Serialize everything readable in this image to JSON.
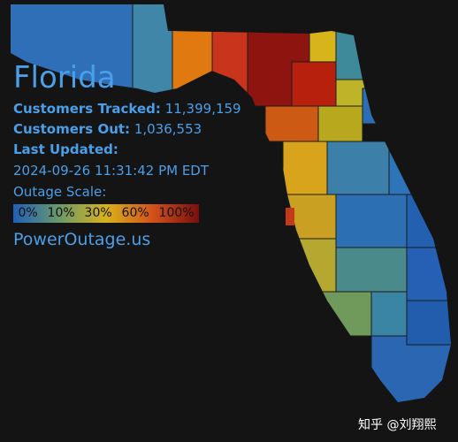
{
  "title": "Florida",
  "stats": [
    {
      "label": "Customers Tracked:",
      "value": "11,399,159"
    },
    {
      "label": "Customers Out:",
      "value": "1,036,553"
    }
  ],
  "last_updated": {
    "label": "Last Updated:",
    "value": "2024-09-26 11:31:42 PM EDT"
  },
  "scale": {
    "label": "Outage Scale:",
    "stops": [
      "0%",
      "10%",
      "30%",
      "60%",
      "100%"
    ]
  },
  "source": "PowerOutage.us",
  "watermark": "知乎 @刘翔熙"
}
